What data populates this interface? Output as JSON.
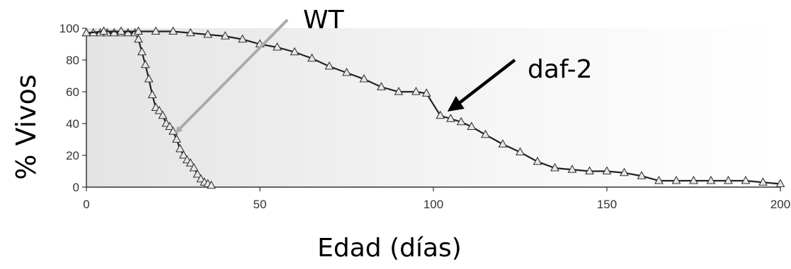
{
  "chart_data": {
    "type": "line",
    "xlabel": "Edad (días)",
    "ylabel": "% Vivos",
    "xlim": [
      0,
      200
    ],
    "ylim": [
      0,
      100
    ],
    "x_ticks": [
      "0",
      "50",
      "100",
      "150",
      "200"
    ],
    "y_ticks": [
      "0",
      "20",
      "40",
      "60",
      "80",
      "100"
    ],
    "grid": false,
    "marker": "triangle",
    "series": [
      {
        "name": "WT",
        "points": [
          [
            0,
            97
          ],
          [
            2,
            97
          ],
          [
            4,
            97
          ],
          [
            6,
            97
          ],
          [
            8,
            97
          ],
          [
            10,
            97
          ],
          [
            12,
            97
          ],
          [
            14,
            97
          ],
          [
            15,
            93
          ],
          [
            16,
            85
          ],
          [
            17,
            77
          ],
          [
            18,
            68
          ],
          [
            19,
            58
          ],
          [
            20,
            50
          ],
          [
            21,
            48
          ],
          [
            22,
            45
          ],
          [
            23,
            40
          ],
          [
            24,
            38
          ],
          [
            25,
            35
          ],
          [
            26,
            30
          ],
          [
            27,
            24
          ],
          [
            28,
            20
          ],
          [
            29,
            17
          ],
          [
            30,
            15
          ],
          [
            31,
            12
          ],
          [
            32,
            8
          ],
          [
            33,
            5
          ],
          [
            34,
            3
          ],
          [
            35,
            2
          ],
          [
            36,
            1
          ]
        ]
      },
      {
        "name": "daf-2",
        "points": [
          [
            0,
            97
          ],
          [
            5,
            98
          ],
          [
            10,
            98
          ],
          [
            15,
            98
          ],
          [
            20,
            98
          ],
          [
            25,
            98
          ],
          [
            30,
            97
          ],
          [
            35,
            96
          ],
          [
            40,
            95
          ],
          [
            45,
            93
          ],
          [
            50,
            90
          ],
          [
            55,
            88
          ],
          [
            60,
            85
          ],
          [
            65,
            81
          ],
          [
            70,
            76
          ],
          [
            75,
            72
          ],
          [
            80,
            68
          ],
          [
            85,
            63
          ],
          [
            90,
            60
          ],
          [
            95,
            60
          ],
          [
            98,
            59
          ],
          [
            102,
            45
          ],
          [
            105,
            43
          ],
          [
            108,
            41
          ],
          [
            111,
            38
          ],
          [
            115,
            33
          ],
          [
            120,
            27
          ],
          [
            125,
            22
          ],
          [
            130,
            16
          ],
          [
            135,
            12
          ],
          [
            140,
            11
          ],
          [
            145,
            10
          ],
          [
            150,
            10
          ],
          [
            155,
            9
          ],
          [
            160,
            7
          ],
          [
            165,
            4
          ],
          [
            170,
            4
          ],
          [
            175,
            4
          ],
          [
            180,
            4
          ],
          [
            185,
            4
          ],
          [
            190,
            4
          ],
          [
            195,
            3
          ],
          [
            200,
            2
          ]
        ]
      }
    ],
    "annotations": [
      {
        "text": "WT",
        "target": [
          23,
          38
        ],
        "arrow_color": "#aaaaaa"
      },
      {
        "text": "daf-2",
        "target": [
          102,
          44
        ],
        "arrow_color": "#000000"
      }
    ]
  }
}
